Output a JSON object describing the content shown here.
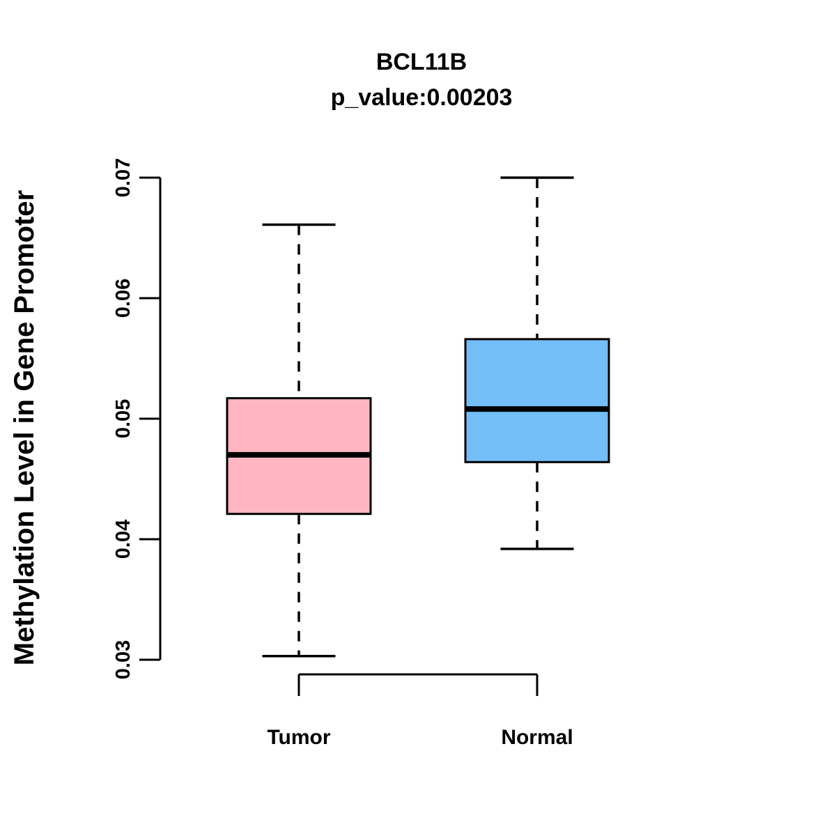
{
  "chart_data": {
    "type": "boxplot",
    "title": "BCL11B",
    "subtitle": "p_value:0.00203",
    "ylabel": "Methylation Level in Gene Promoter",
    "categories": [
      "Tumor",
      "Normal"
    ],
    "ylim": [
      0.03,
      0.07
    ],
    "ytick_labels": [
      "0.03",
      "0.04",
      "0.05",
      "0.06",
      "0.07"
    ],
    "grid": "off",
    "legend": "none",
    "series": [
      {
        "name": "Tumor",
        "whisker_low": 0.0303,
        "q1": 0.0421,
        "median": 0.047,
        "q3": 0.0517,
        "whisker_high": 0.0661,
        "fill_color": "#FFB6C1"
      },
      {
        "name": "Normal",
        "whisker_low": 0.0392,
        "q1": 0.0464,
        "median": 0.0508,
        "q3": 0.0566,
        "whisker_high": 0.07,
        "fill_color": "#74BEF8"
      }
    ],
    "stroke_color": "#000000",
    "background_color": "#FFFFFF"
  }
}
